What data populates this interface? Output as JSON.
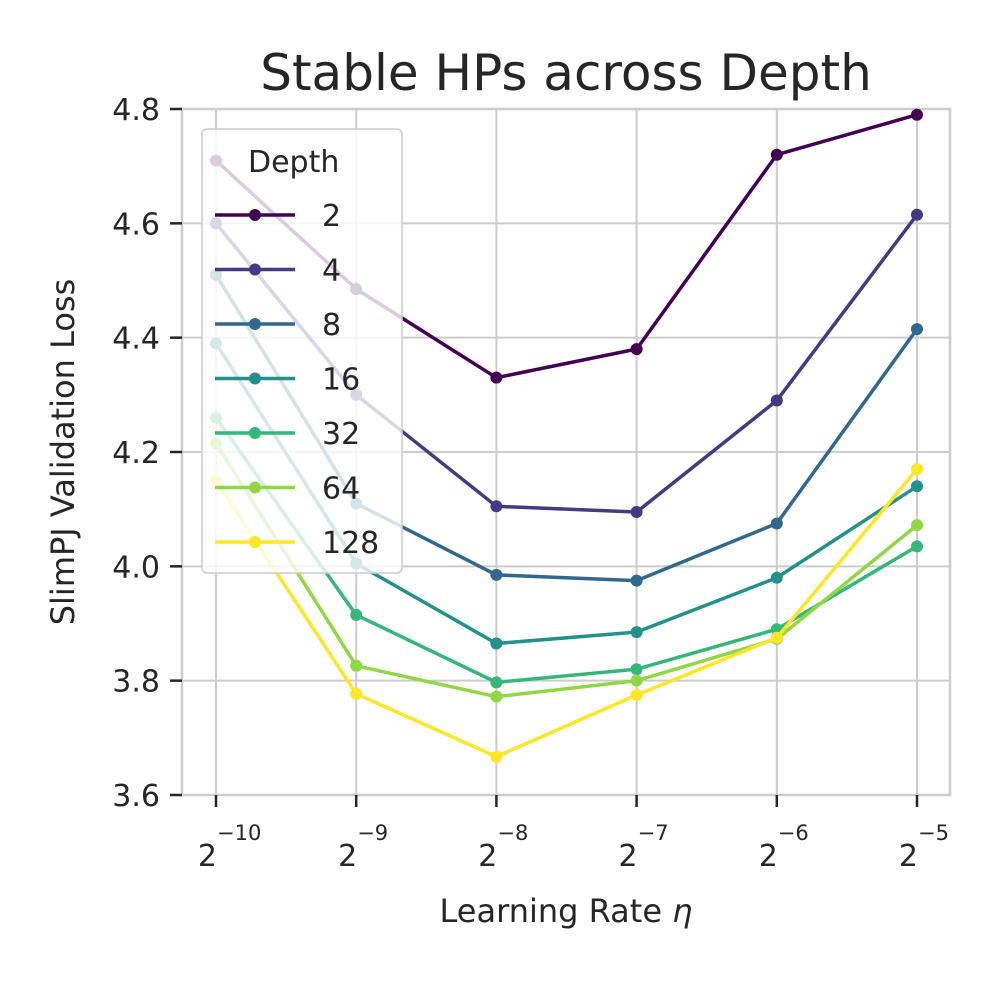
{
  "chart_data": {
    "type": "line",
    "title": "Stable HPs across Depth",
    "xlabel": "Learning Rate",
    "xlabel_symbol": "η",
    "ylabel": "SlimPJ Validation Loss",
    "x_scale": "log2",
    "x_base_label": "2",
    "x": [
      -10,
      -9,
      -8,
      -7,
      -6,
      -5
    ],
    "x_tick_exponents": [
      "−10",
      "−9",
      "−8",
      "−7",
      "−6",
      "−5"
    ],
    "y_ticks": [
      "3.6",
      "3.8",
      "4.0",
      "4.2",
      "4.4",
      "4.6",
      "4.8"
    ],
    "ylim": [
      3.6,
      4.8
    ],
    "grid": true,
    "legend": {
      "title": "Depth",
      "position": "upper-left"
    },
    "series": [
      {
        "name": "2",
        "color": "#440154",
        "values": [
          4.71,
          4.485,
          4.33,
          4.38,
          4.72,
          4.79
        ]
      },
      {
        "name": "4",
        "color": "#443983",
        "values": [
          4.6,
          4.3,
          4.105,
          4.095,
          4.29,
          4.615
        ]
      },
      {
        "name": "8",
        "color": "#31688e",
        "values": [
          4.51,
          4.11,
          3.985,
          3.975,
          4.075,
          4.415
        ]
      },
      {
        "name": "16",
        "color": "#21918c",
        "values": [
          4.39,
          4.005,
          3.865,
          3.885,
          3.98,
          4.14
        ]
      },
      {
        "name": "32",
        "color": "#35b779",
        "values": [
          4.26,
          3.915,
          3.797,
          3.82,
          3.89,
          4.035
        ]
      },
      {
        "name": "64",
        "color": "#90d743",
        "values": [
          4.215,
          3.826,
          3.772,
          3.8,
          3.873,
          4.072
        ]
      },
      {
        "name": "128",
        "color": "#fde725",
        "values": [
          4.15,
          3.777,
          3.667,
          3.775,
          3.875,
          4.17
        ]
      }
    ]
  }
}
